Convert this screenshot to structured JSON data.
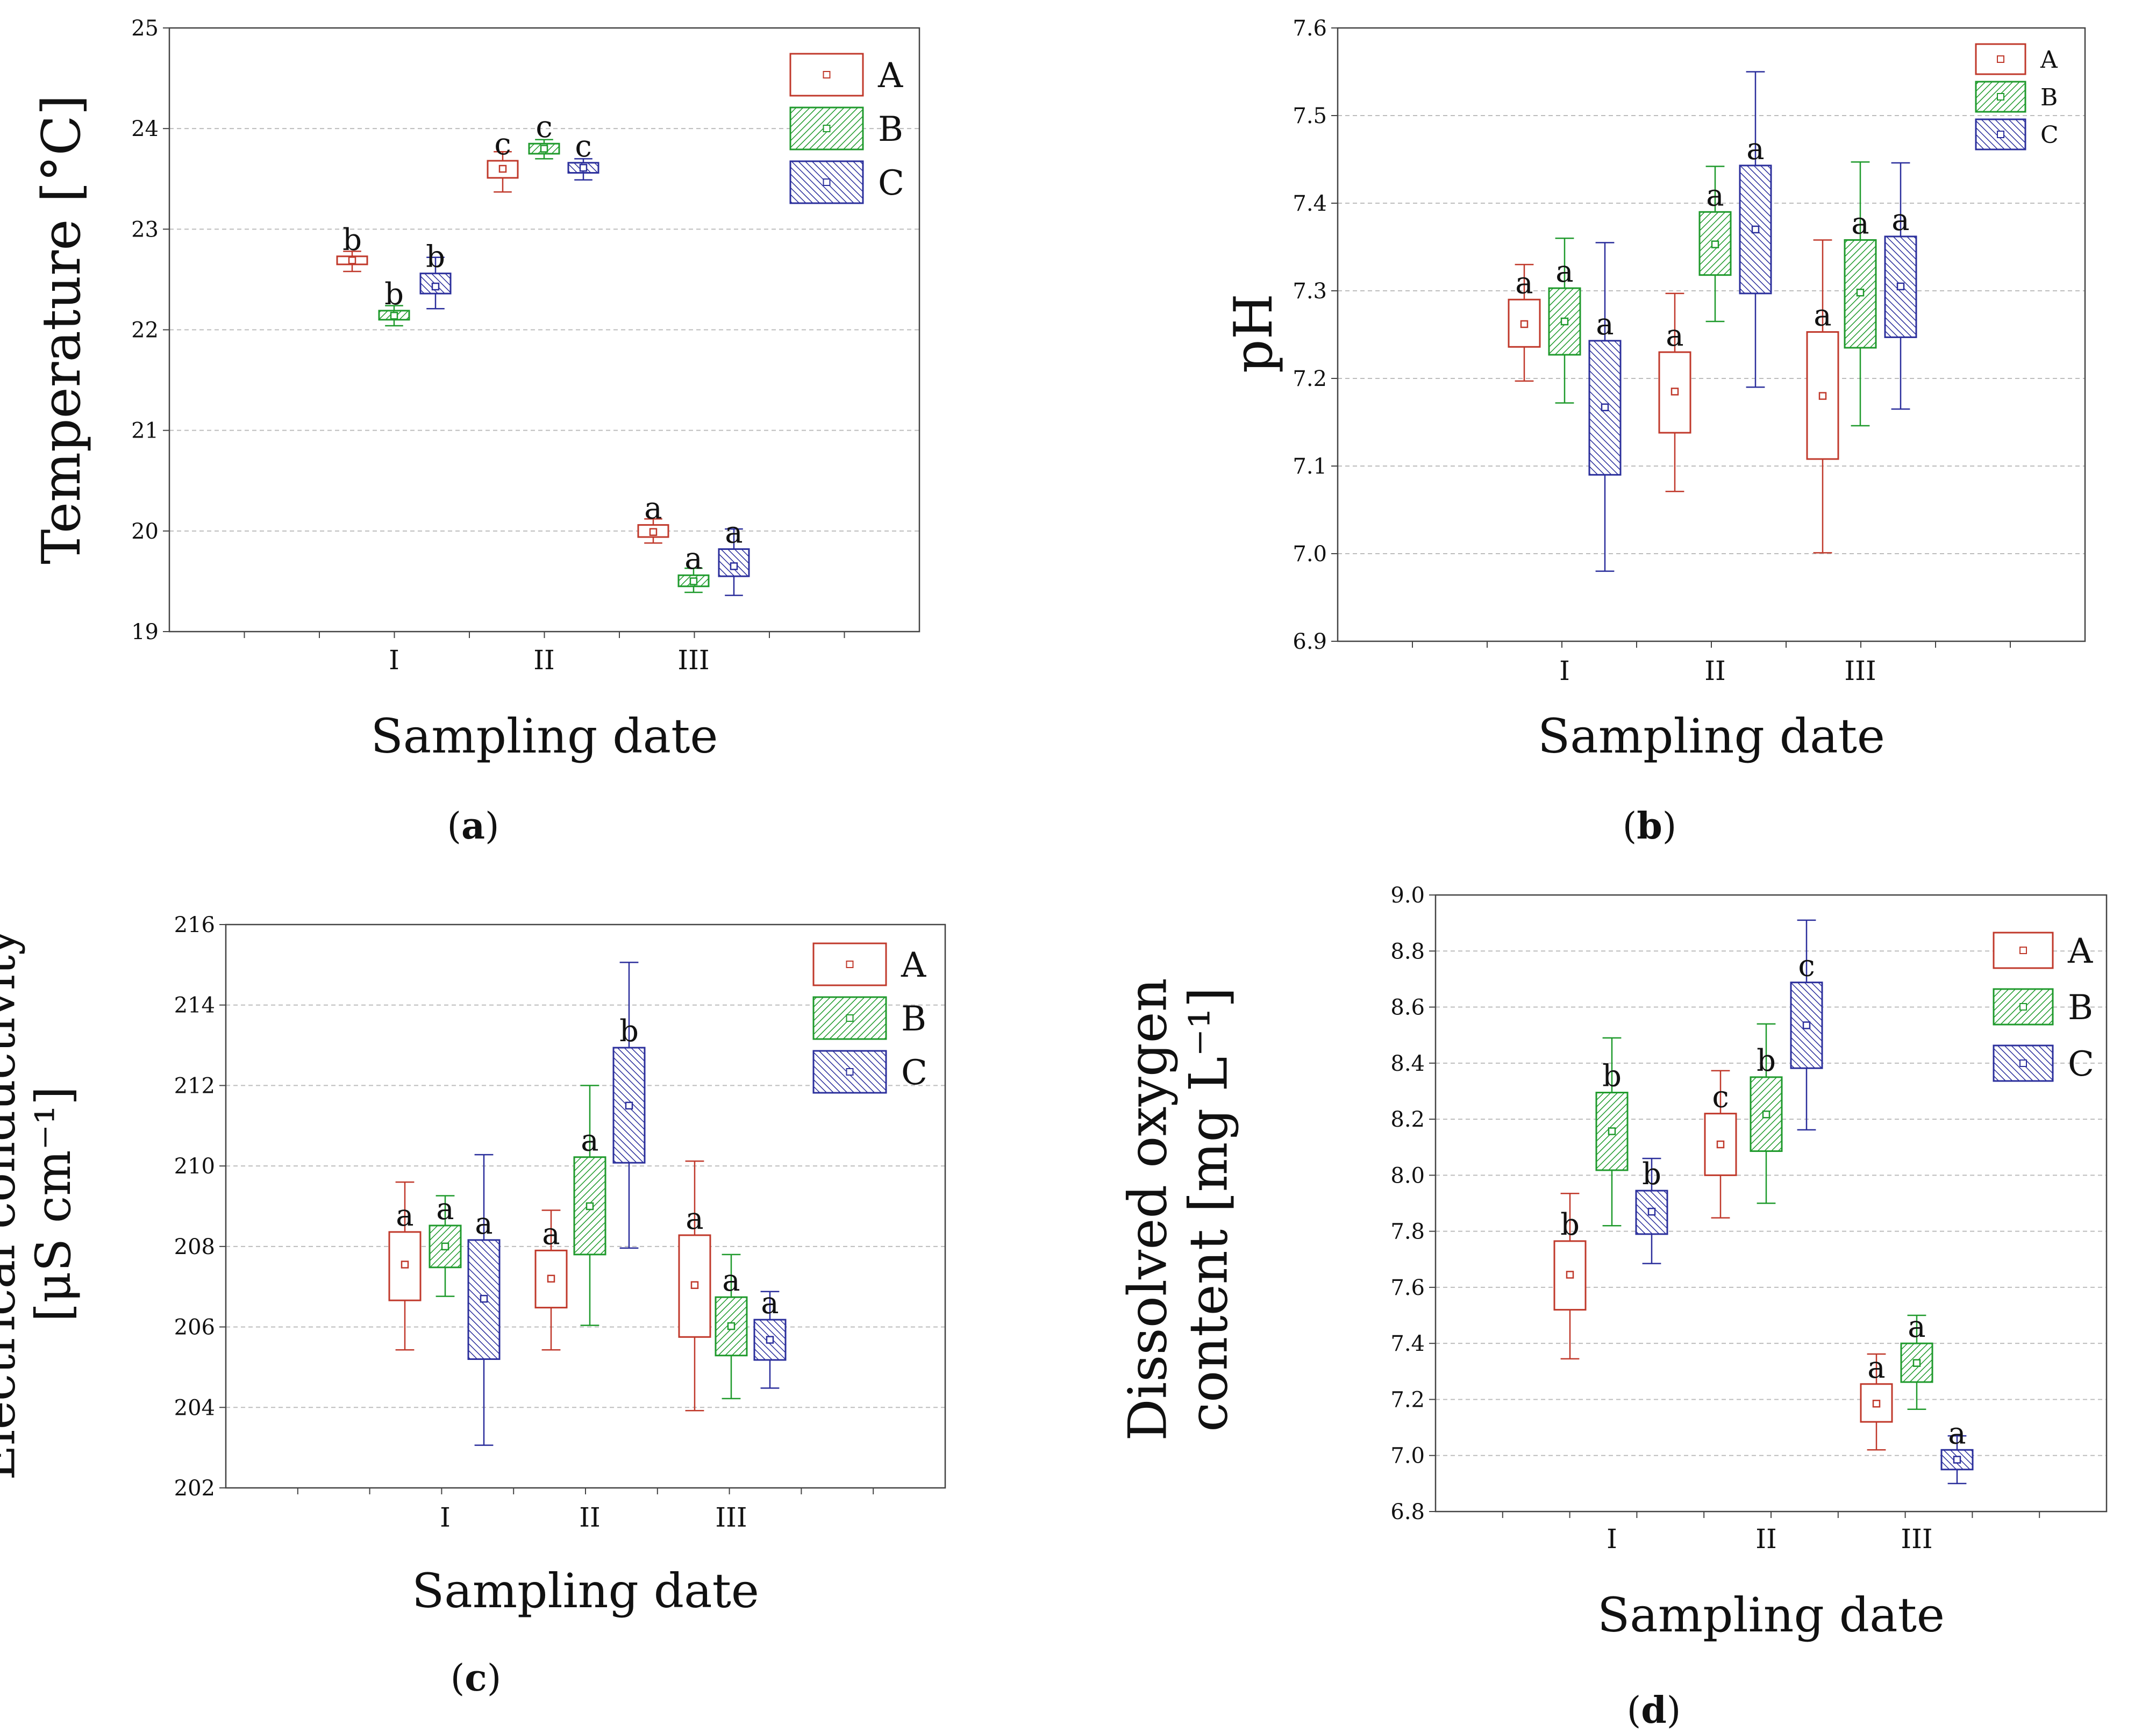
{
  "colors": {
    "A": "#c0392b",
    "B": "#1f9a2c",
    "C": "#2b2f9c",
    "grid": "#bdbdbd",
    "frame": "#444444"
  },
  "chart_data": [
    {
      "type": "box",
      "panel_label": "(a)",
      "xlabel": "Sampling date",
      "ylabel_lines": [
        "Temperature [°C]"
      ],
      "categories": [
        "I",
        "II",
        "III"
      ],
      "ylim": [
        19,
        25
      ],
      "yticks": [
        "19",
        "20",
        "21",
        "22",
        "23",
        "24",
        "25"
      ],
      "legend": [
        "A",
        "B",
        "C"
      ],
      "series": [
        {
          "name": "A",
          "boxes": [
            {
              "min": 22.58,
              "q1": 22.65,
              "median": 22.69,
              "q3": 22.73,
              "max": 22.78,
              "letter": "b"
            },
            {
              "min": 23.37,
              "q1": 23.51,
              "median": 23.6,
              "q3": 23.68,
              "max": 23.77,
              "letter": "c"
            },
            {
              "min": 19.88,
              "q1": 19.94,
              "median": 19.99,
              "q3": 20.06,
              "max": 20.12,
              "letter": "a"
            }
          ]
        },
        {
          "name": "B",
          "boxes": [
            {
              "min": 22.04,
              "q1": 22.1,
              "median": 22.14,
              "q3": 22.19,
              "max": 22.24,
              "letter": "b"
            },
            {
              "min": 23.7,
              "q1": 23.75,
              "median": 23.8,
              "q3": 23.85,
              "max": 23.89,
              "letter": "c"
            },
            {
              "min": 19.39,
              "q1": 19.45,
              "median": 19.5,
              "q3": 19.56,
              "max": 19.63,
              "letter": "a"
            }
          ]
        },
        {
          "name": "C",
          "boxes": [
            {
              "min": 22.21,
              "q1": 22.36,
              "median": 22.43,
              "q3": 22.56,
              "max": 22.72,
              "letter": "b"
            },
            {
              "min": 23.49,
              "q1": 23.56,
              "median": 23.61,
              "q3": 23.66,
              "max": 23.7,
              "letter": "c"
            },
            {
              "min": 19.36,
              "q1": 19.55,
              "median": 19.65,
              "q3": 19.82,
              "max": 20.02,
              "letter": "a"
            }
          ]
        }
      ]
    },
    {
      "type": "box",
      "panel_label": "(b)",
      "xlabel": "Sampling date",
      "ylabel_lines": [
        "pH"
      ],
      "categories": [
        "I",
        "II",
        "III"
      ],
      "ylim": [
        6.9,
        7.6
      ],
      "yticks": [
        "6.9",
        "7.0",
        "7.1",
        "7.2",
        "7.3",
        "7.4",
        "7.5",
        "7.6"
      ],
      "legend": [
        "A",
        "B",
        "C"
      ],
      "series": [
        {
          "name": "A",
          "boxes": [
            {
              "min": 7.197,
              "q1": 7.236,
              "median": 7.262,
              "q3": 7.29,
              "max": 7.33,
              "letter": "a"
            },
            {
              "min": 7.071,
              "q1": 7.138,
              "median": 7.185,
              "q3": 7.23,
              "max": 7.297,
              "letter": "a"
            },
            {
              "min": 7.001,
              "q1": 7.108,
              "median": 7.18,
              "q3": 7.253,
              "max": 7.358,
              "letter": "a"
            }
          ]
        },
        {
          "name": "B",
          "boxes": [
            {
              "min": 7.172,
              "q1": 7.227,
              "median": 7.265,
              "q3": 7.303,
              "max": 7.36,
              "letter": "a"
            },
            {
              "min": 7.265,
              "q1": 7.318,
              "median": 7.353,
              "q3": 7.39,
              "max": 7.442,
              "letter": "a"
            },
            {
              "min": 7.146,
              "q1": 7.235,
              "median": 7.298,
              "q3": 7.358,
              "max": 7.447,
              "letter": "a"
            }
          ]
        },
        {
          "name": "C",
          "boxes": [
            {
              "min": 6.98,
              "q1": 7.09,
              "median": 7.167,
              "q3": 7.243,
              "max": 7.355,
              "letter": "a"
            },
            {
              "min": 7.19,
              "q1": 7.297,
              "median": 7.37,
              "q3": 7.443,
              "max": 7.55,
              "letter": "a"
            },
            {
              "min": 7.165,
              "q1": 7.247,
              "median": 7.305,
              "q3": 7.362,
              "max": 7.446,
              "letter": "a"
            }
          ]
        }
      ]
    },
    {
      "type": "box",
      "panel_label": "(c)",
      "xlabel": "Sampling date",
      "ylabel_lines": [
        "Electrical conductivity",
        "[μS cm⁻¹]"
      ],
      "categories": [
        "I",
        "II",
        "III"
      ],
      "ylim": [
        202,
        216
      ],
      "yticks": [
        "202",
        "204",
        "206",
        "208",
        "210",
        "212",
        "214",
        "216"
      ],
      "legend": [
        "A",
        "B",
        "C"
      ],
      "series": [
        {
          "name": "A",
          "boxes": [
            {
              "min": 205.43,
              "q1": 206.66,
              "median": 207.55,
              "q3": 208.36,
              "max": 209.6,
              "letter": "a"
            },
            {
              "min": 205.43,
              "q1": 206.48,
              "median": 207.2,
              "q3": 207.9,
              "max": 208.9,
              "letter": "a"
            },
            {
              "min": 203.92,
              "q1": 205.75,
              "median": 207.04,
              "q3": 208.28,
              "max": 210.12,
              "letter": "a"
            }
          ]
        },
        {
          "name": "B",
          "boxes": [
            {
              "min": 206.76,
              "q1": 207.48,
              "median": 208.0,
              "q3": 208.52,
              "max": 209.26,
              "letter": "a"
            },
            {
              "min": 206.04,
              "q1": 207.8,
              "median": 209.0,
              "q3": 210.22,
              "max": 212.0,
              "letter": "a"
            },
            {
              "min": 204.22,
              "q1": 205.29,
              "median": 206.02,
              "q3": 206.74,
              "max": 207.8,
              "letter": "a"
            }
          ]
        },
        {
          "name": "C",
          "boxes": [
            {
              "min": 203.06,
              "q1": 205.2,
              "median": 206.7,
              "q3": 208.16,
              "max": 210.28,
              "letter": "a"
            },
            {
              "min": 207.96,
              "q1": 210.08,
              "median": 211.5,
              "q3": 212.94,
              "max": 215.06,
              "letter": "b"
            },
            {
              "min": 204.48,
              "q1": 205.18,
              "median": 205.68,
              "q3": 206.18,
              "max": 206.88,
              "letter": "a"
            }
          ]
        }
      ]
    },
    {
      "type": "box",
      "panel_label": "(d)",
      "xlabel": "Sampling date",
      "ylabel_lines": [
        "Dissolved oxygen",
        "content [mg L⁻¹]"
      ],
      "categories": [
        "I",
        "II",
        "III"
      ],
      "ylim": [
        6.8,
        9.0
      ],
      "yticks": [
        "6.8",
        "7.0",
        "7.2",
        "7.4",
        "7.6",
        "7.8",
        "8.0",
        "8.2",
        "8.4",
        "8.6",
        "8.8",
        "9.0"
      ],
      "legend": [
        "A",
        "B",
        "C"
      ],
      "series": [
        {
          "name": "A",
          "boxes": [
            {
              "min": 7.345,
              "q1": 7.52,
              "median": 7.645,
              "q3": 7.765,
              "max": 7.935,
              "letter": "b"
            },
            {
              "min": 7.848,
              "q1": 8.0,
              "median": 8.11,
              "q3": 8.22,
              "max": 8.373,
              "letter": "c"
            },
            {
              "min": 7.02,
              "q1": 7.12,
              "median": 7.185,
              "q3": 7.255,
              "max": 7.362,
              "letter": "a"
            }
          ]
        },
        {
          "name": "B",
          "boxes": [
            {
              "min": 7.82,
              "q1": 8.018,
              "median": 8.157,
              "q3": 8.295,
              "max": 8.49,
              "letter": "b"
            },
            {
              "min": 7.9,
              "q1": 8.086,
              "median": 8.217,
              "q3": 8.35,
              "max": 8.54,
              "letter": "b"
            },
            {
              "min": 7.165,
              "q1": 7.262,
              "median": 7.33,
              "q3": 7.4,
              "max": 7.5,
              "letter": "a"
            }
          ]
        },
        {
          "name": "C",
          "boxes": [
            {
              "min": 7.685,
              "q1": 7.79,
              "median": 7.87,
              "q3": 7.945,
              "max": 8.06,
              "letter": "b"
            },
            {
              "min": 8.162,
              "q1": 8.382,
              "median": 8.535,
              "q3": 8.688,
              "max": 8.91,
              "letter": "c"
            },
            {
              "min": 6.9,
              "q1": 6.95,
              "median": 6.985,
              "q3": 7.02,
              "max": 7.07,
              "letter": "a"
            }
          ]
        }
      ]
    }
  ]
}
